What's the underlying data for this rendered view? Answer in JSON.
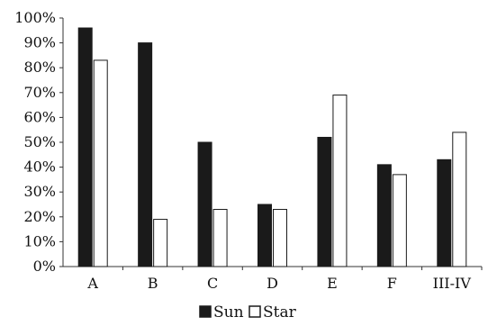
{
  "chart_data": {
    "type": "bar",
    "categories": [
      "A",
      "B",
      "C",
      "D",
      "E",
      "F",
      "III-IV"
    ],
    "series": [
      {
        "name": "Sun",
        "values": [
          96,
          90,
          50,
          25,
          52,
          41,
          43
        ],
        "fill": "#1a1a1a",
        "stroke": "#1a1a1a"
      },
      {
        "name": "Star",
        "values": [
          83,
          19,
          23,
          23,
          69,
          37,
          54
        ],
        "fill": "#ffffff",
        "stroke": "#1a1a1a"
      }
    ],
    "ylim": [
      0,
      100
    ],
    "yticks": [
      0,
      10,
      20,
      30,
      40,
      50,
      60,
      70,
      80,
      90,
      100
    ],
    "ytick_labels": [
      "0%",
      "10%",
      "20%",
      "30%",
      "40%",
      "50%",
      "60%",
      "70%",
      "80%",
      "90%",
      "100%"
    ],
    "title": "",
    "xlabel": "",
    "ylabel": "",
    "grid": false,
    "legend": {
      "placement": "bottom-center",
      "entries": [
        "Sun",
        "Star"
      ]
    },
    "axis_color": "#333333"
  }
}
